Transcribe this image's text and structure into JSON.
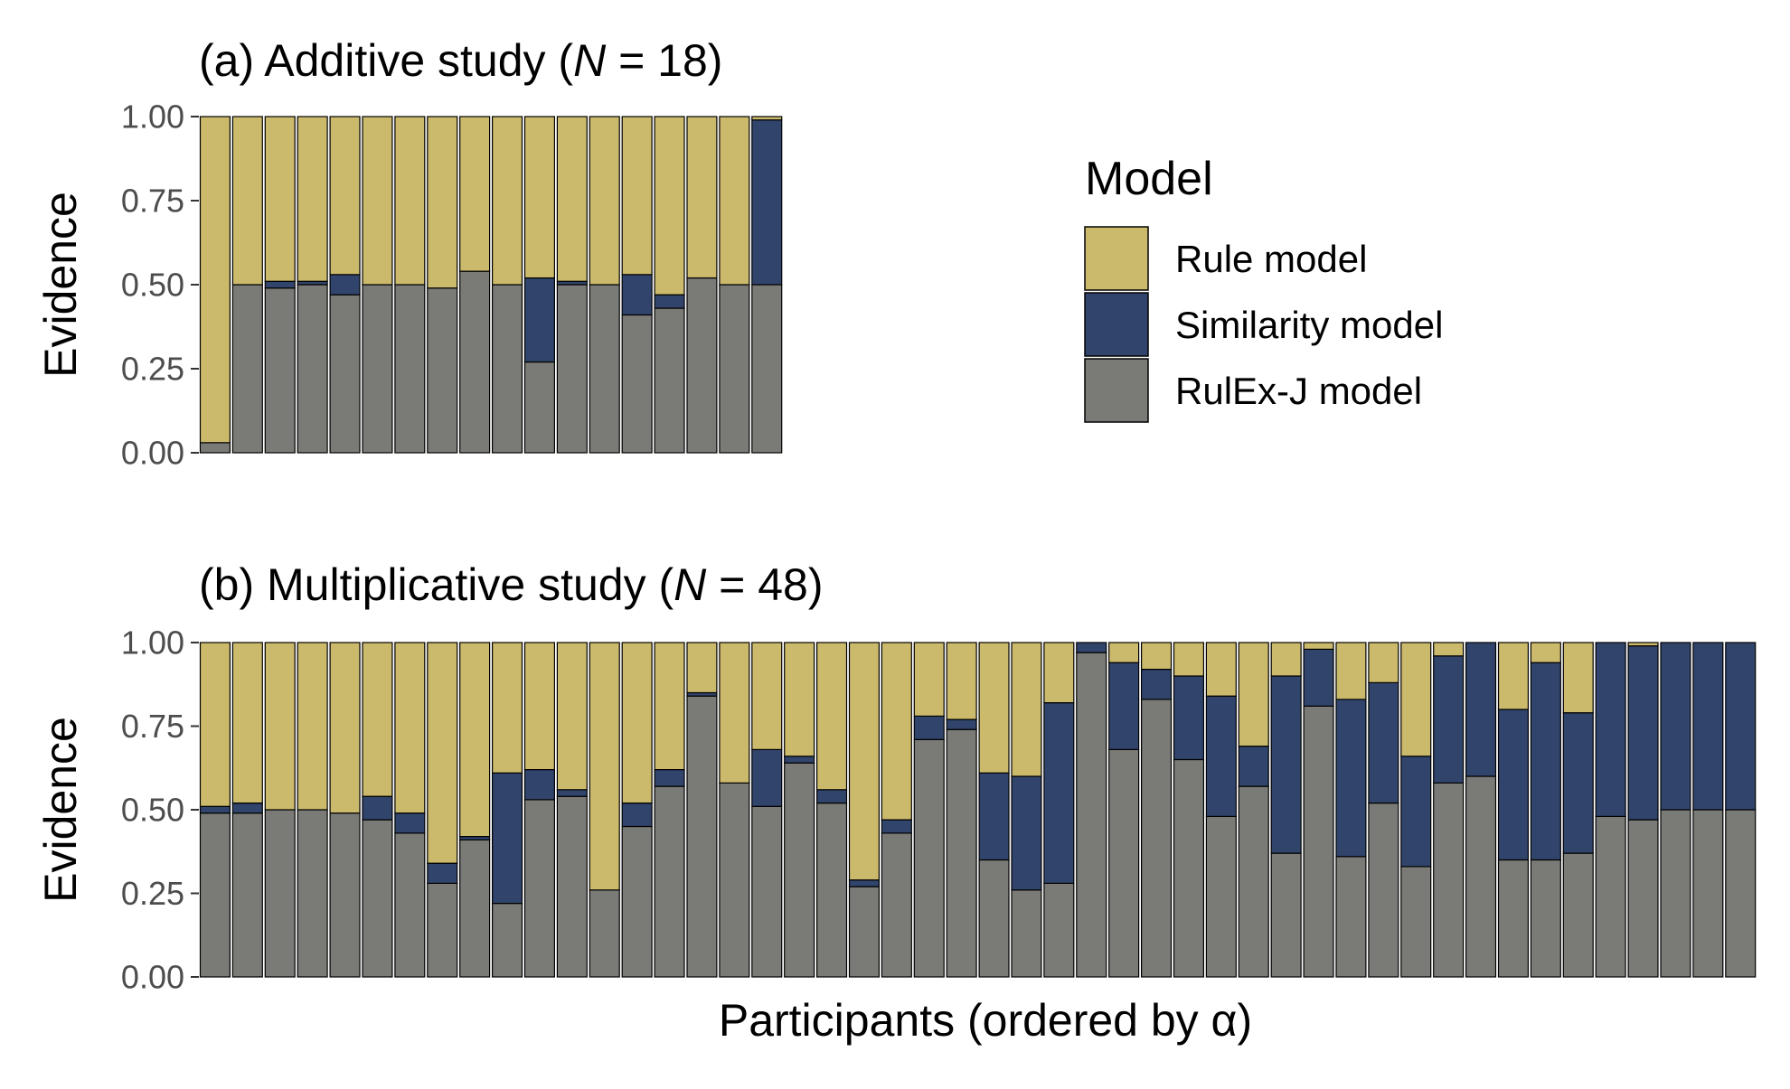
{
  "colors": {
    "rule": "#CBB96C",
    "similarity": "#31446B",
    "rulex": "#7A7A76",
    "outline": "#000000",
    "tick_text": "#4D4D4D"
  },
  "chart_data": [
    {
      "type": "bar",
      "stacked": true,
      "title_prefix": "(a) Additive study (",
      "title_italic": "N",
      "title_suffix": " = 18)",
      "xlabel": "",
      "ylabel": "Evidence",
      "ylim": [
        0,
        1
      ],
      "y_ticks": [
        "0.00",
        "0.25",
        "0.50",
        "0.75",
        "1.00"
      ],
      "grid": false,
      "n_participants": 18,
      "series": [
        {
          "name": "RulEx-J model",
          "values": [
            0.03,
            0.5,
            0.49,
            0.5,
            0.47,
            0.5,
            0.5,
            0.49,
            0.54,
            0.5,
            0.27,
            0.5,
            0.5,
            0.41,
            0.43,
            0.52,
            0.5,
            0.5
          ]
        },
        {
          "name": "Similarity model",
          "values": [
            0.0,
            0.0,
            0.02,
            0.01,
            0.06,
            0.0,
            0.0,
            0.0,
            0.0,
            0.0,
            0.25,
            0.01,
            0.0,
            0.12,
            0.04,
            0.0,
            0.0,
            0.49
          ]
        },
        {
          "name": "Rule model",
          "values": [
            0.97,
            0.5,
            0.49,
            0.49,
            0.47,
            0.5,
            0.5,
            0.51,
            0.46,
            0.5,
            0.48,
            0.49,
            0.5,
            0.47,
            0.53,
            0.48,
            0.5,
            0.01
          ]
        }
      ]
    },
    {
      "type": "bar",
      "stacked": true,
      "title_prefix": "(b) Multiplicative study (",
      "title_italic": "N",
      "title_suffix": " = 48)",
      "xlabel": "Participants (ordered by α)",
      "ylabel": "Evidence",
      "ylim": [
        0,
        1
      ],
      "y_ticks": [
        "0.00",
        "0.25",
        "0.50",
        "0.75",
        "1.00"
      ],
      "grid": false,
      "n_participants": 48,
      "series": [
        {
          "name": "RulEx-J model",
          "values": [
            0.49,
            0.49,
            0.5,
            0.5,
            0.49,
            0.47,
            0.43,
            0.28,
            0.41,
            0.22,
            0.53,
            0.54,
            0.26,
            0.45,
            0.57,
            0.84,
            0.58,
            0.51,
            0.64,
            0.52,
            0.27,
            0.43,
            0.71,
            0.74,
            0.35,
            0.26,
            0.28,
            0.97,
            0.68,
            0.83,
            0.65,
            0.48,
            0.57,
            0.37,
            0.81,
            0.36,
            0.52,
            0.33,
            0.58,
            0.6,
            0.35,
            0.35,
            0.37,
            0.48,
            0.47,
            0.5,
            0.5,
            0.5
          ]
        },
        {
          "name": "Similarity model",
          "values": [
            0.02,
            0.03,
            0.0,
            0.0,
            0.0,
            0.07,
            0.06,
            0.06,
            0.01,
            0.39,
            0.09,
            0.02,
            0.0,
            0.07,
            0.05,
            0.01,
            0.0,
            0.17,
            0.02,
            0.04,
            0.02,
            0.04,
            0.07,
            0.03,
            0.26,
            0.34,
            0.54,
            0.03,
            0.26,
            0.09,
            0.25,
            0.36,
            0.12,
            0.53,
            0.17,
            0.47,
            0.36,
            0.33,
            0.38,
            0.4,
            0.45,
            0.59,
            0.42,
            0.52,
            0.52,
            0.5,
            0.5,
            0.5
          ]
        },
        {
          "name": "Rule model",
          "values": [
            0.49,
            0.48,
            0.5,
            0.5,
            0.51,
            0.46,
            0.51,
            0.66,
            0.58,
            0.39,
            0.38,
            0.44,
            0.74,
            0.48,
            0.38,
            0.15,
            0.42,
            0.32,
            0.34,
            0.44,
            0.71,
            0.53,
            0.22,
            0.23,
            0.39,
            0.4,
            0.18,
            0.0,
            0.06,
            0.08,
            0.1,
            0.16,
            0.31,
            0.1,
            0.02,
            0.17,
            0.12,
            0.34,
            0.04,
            0.0,
            0.2,
            0.06,
            0.21,
            0.0,
            0.01,
            0.0,
            0.0,
            0.0
          ]
        }
      ]
    }
  ],
  "legend": {
    "title": "Model",
    "items": [
      {
        "key": "rule",
        "label": "Rule model"
      },
      {
        "key": "similarity",
        "label": "Similarity model"
      },
      {
        "key": "rulex",
        "label": "RulEx-J model"
      }
    ]
  }
}
